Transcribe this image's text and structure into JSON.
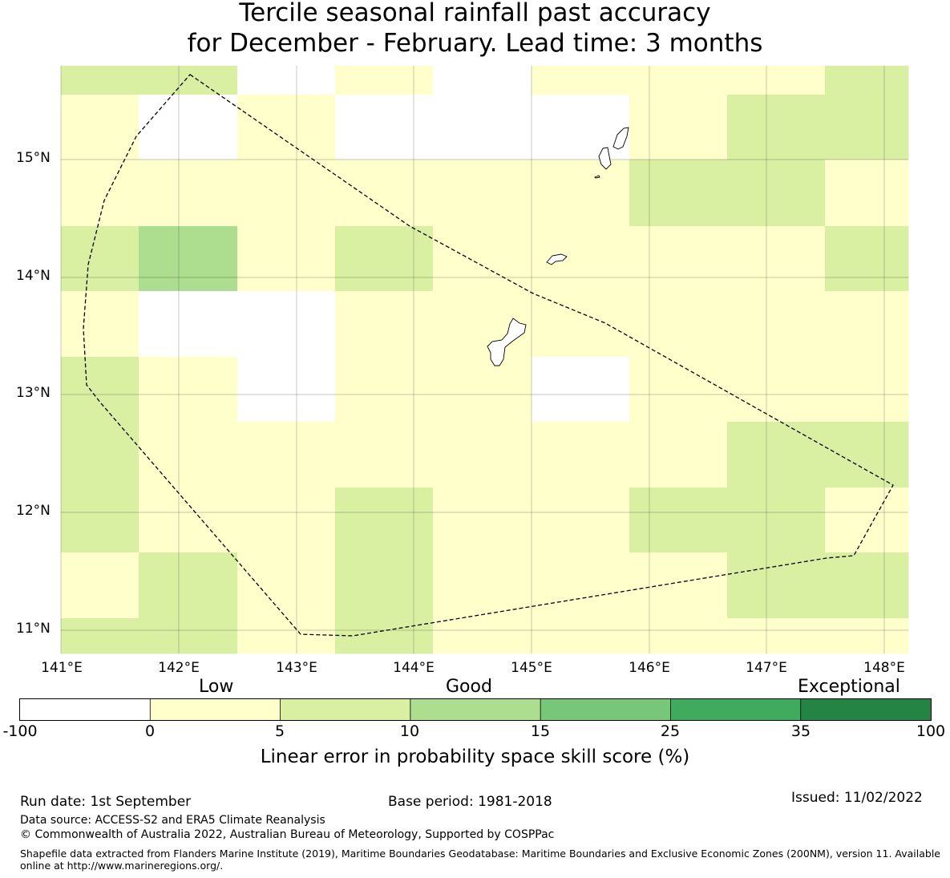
{
  "title": {
    "line1": "Tercile seasonal rainfall past accuracy",
    "line2": "for December - February. Lead time: 3 months"
  },
  "map": {
    "lon_range": [
      141.0,
      148.2
    ],
    "lat_range": [
      10.8,
      15.8
    ],
    "lon_ticks": [
      "141°E",
      "142°E",
      "143°E",
      "144°E",
      "145°E",
      "146°E",
      "147°E",
      "148°E"
    ],
    "lat_ticks": [
      "11°N",
      "12°N",
      "13°N",
      "14°N",
      "15°N"
    ],
    "colors": {
      "negative": "#ffffff",
      "low": "#ffffcc",
      "light_green": "#d9f0a3",
      "mid_green": "#addd8e",
      "green": "#78c679",
      "dark_green": "#41ab5d",
      "darkest_green": "#238443"
    }
  },
  "colorbar": {
    "category_labels": [
      "Low",
      "Good",
      "Exceptional"
    ],
    "ticks": [
      "-100",
      "0",
      "5",
      "10",
      "15",
      "25",
      "35",
      "100"
    ],
    "colors": [
      "#ffffff",
      "#ffffcc",
      "#d9f0a3",
      "#addd8e",
      "#78c679",
      "#41ab5d",
      "#238443"
    ],
    "label": "Linear error in probability space skill score (%)"
  },
  "footer": {
    "run_date": "Run date: 1st September",
    "base_period": "Base period: 1981-2018",
    "issued": "Issued: 11/02/2022",
    "data_source": "Data source: ACCESS-S2 and ERA5 Climate Reanalysis",
    "copyright": "© Commonwealth of Australia 2022, Australian Bureau of Meteorology, Supported by COSPPac",
    "shapefile": "Shapefile data extracted from Flanders Marine Institute (2019), Maritime Boundaries Geodatabase: Maritime Boundaries and Exclusive Economic Zones (200NM), version 11. Available online at http://www.marineregions.org/."
  }
}
